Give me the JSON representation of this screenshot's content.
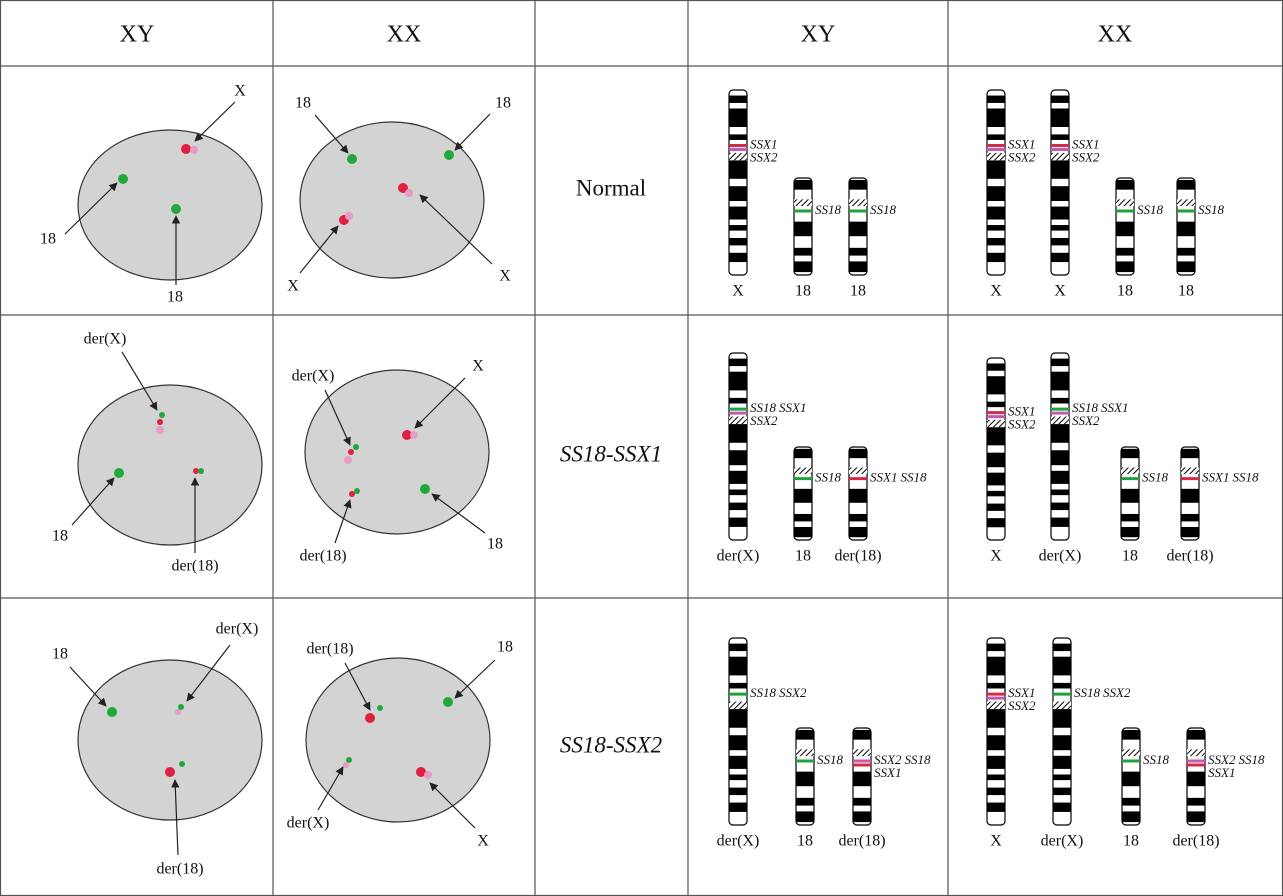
{
  "header": {
    "nuclei_columns": [
      "XY",
      "XX"
    ],
    "karyotype_columns": [
      "XY",
      "XX"
    ]
  },
  "rows": [
    {
      "label": "Normal",
      "nuclei": [
        {
          "labels": [
            "X",
            "18",
            "18"
          ]
        },
        {
          "labels": [
            "18",
            "18",
            "X",
            "X"
          ]
        }
      ],
      "karyotypes": [
        {
          "chromosomes": [
            {
              "name": "X",
              "genes": [
                [
                  {
                    "name": "SSX1",
                    "color": "#d42a48"
                  }
                ],
                [
                  {
                    "name": "SSX2",
                    "color": "#c45ab0"
                  }
                ]
              ]
            },
            {
              "name": "18",
              "genes": [
                [
                  {
                    "name": "SS18",
                    "color": "#1fa23a"
                  }
                ]
              ]
            },
            {
              "name": "18",
              "genes": [
                [
                  {
                    "name": "SS18",
                    "color": "#1fa23a"
                  }
                ]
              ]
            }
          ]
        },
        {
          "chromosomes": [
            {
              "name": "X",
              "genes": [
                [
                  {
                    "name": "SSX1",
                    "color": "#d42a48"
                  }
                ],
                [
                  {
                    "name": "SSX2",
                    "color": "#c45ab0"
                  }
                ]
              ]
            },
            {
              "name": "X",
              "genes": [
                [
                  {
                    "name": "SSX1",
                    "color": "#d42a48"
                  }
                ],
                [
                  {
                    "name": "SSX2",
                    "color": "#c45ab0"
                  }
                ]
              ]
            },
            {
              "name": "18",
              "genes": [
                [
                  {
                    "name": "SS18",
                    "color": "#1fa23a"
                  }
                ]
              ]
            },
            {
              "name": "18",
              "genes": [
                [
                  {
                    "name": "SS18",
                    "color": "#1fa23a"
                  }
                ]
              ]
            }
          ]
        }
      ]
    },
    {
      "label": "SS18-SSX1",
      "nuclei": [
        {
          "labels": [
            "der(X)",
            "18",
            "der(18)"
          ]
        },
        {
          "labels": [
            "der(X)",
            "X",
            "der(18)",
            "18"
          ]
        }
      ],
      "karyotypes": [
        {
          "chromosomes": [
            {
              "name": "der(X)",
              "genes": [
                [
                  {
                    "name": "SS18",
                    "color": "#1fa23a"
                  },
                  {
                    "name": "SSX1",
                    "color": "#d42a48"
                  }
                ],
                [
                  {
                    "name": "SSX2",
                    "color": "#c45ab0"
                  }
                ]
              ]
            },
            {
              "name": "18",
              "genes": [
                [
                  {
                    "name": "SS18",
                    "color": "#1fa23a"
                  }
                ]
              ]
            },
            {
              "name": "der(18)",
              "genes": [
                [
                  {
                    "name": "SSX1",
                    "color": "#d42a48"
                  },
                  {
                    "name": "SS18",
                    "color": "#1fa23a"
                  }
                ]
              ]
            }
          ]
        },
        {
          "chromosomes": [
            {
              "name": "X",
              "genes": [
                [
                  {
                    "name": "SSX1",
                    "color": "#d42a48"
                  }
                ],
                [
                  {
                    "name": "SSX2",
                    "color": "#c45ab0"
                  }
                ]
              ]
            },
            {
              "name": "der(X)",
              "genes": [
                [
                  {
                    "name": "SS18",
                    "color": "#1fa23a"
                  },
                  {
                    "name": "SSX1",
                    "color": "#d42a48"
                  }
                ],
                [
                  {
                    "name": "SSX2",
                    "color": "#c45ab0"
                  }
                ]
              ]
            },
            {
              "name": "18",
              "genes": [
                [
                  {
                    "name": "SS18",
                    "color": "#1fa23a"
                  }
                ]
              ]
            },
            {
              "name": "der(18)",
              "genes": [
                [
                  {
                    "name": "SSX1",
                    "color": "#d42a48"
                  },
                  {
                    "name": "SS18",
                    "color": "#1fa23a"
                  }
                ]
              ]
            }
          ]
        }
      ]
    },
    {
      "label": "SS18-SSX2",
      "nuclei": [
        {
          "labels": [
            "18",
            "der(X)",
            "der(18)"
          ]
        },
        {
          "labels": [
            "der(18)",
            "18",
            "der(X)",
            "X"
          ]
        }
      ],
      "karyotypes": [
        {
          "chromosomes": [
            {
              "name": "der(X)",
              "genes": [
                [
                  {
                    "name": "SS18",
                    "color": "#1fa23a"
                  },
                  {
                    "name": "SSX2",
                    "color": "#c45ab0"
                  }
                ]
              ]
            },
            {
              "name": "18",
              "genes": [
                [
                  {
                    "name": "SS18",
                    "color": "#1fa23a"
                  }
                ]
              ]
            },
            {
              "name": "der(18)",
              "genes": [
                [
                  {
                    "name": "SSX2",
                    "color": "#c45ab0"
                  },
                  {
                    "name": "SS18",
                    "color": "#1fa23a"
                  }
                ],
                [
                  {
                    "name": "SSX1",
                    "color": "#d42a48"
                  }
                ]
              ]
            }
          ]
        },
        {
          "chromosomes": [
            {
              "name": "X",
              "genes": [
                [
                  {
                    "name": "SSX1",
                    "color": "#d42a48"
                  }
                ],
                [
                  {
                    "name": "SSX2",
                    "color": "#c45ab0"
                  }
                ]
              ]
            },
            {
              "name": "der(X)",
              "genes": [
                [
                  {
                    "name": "SS18",
                    "color": "#1fa23a"
                  },
                  {
                    "name": "SSX2",
                    "color": "#c45ab0"
                  }
                ]
              ]
            },
            {
              "name": "18",
              "genes": [
                [
                  {
                    "name": "SS18",
                    "color": "#1fa23a"
                  }
                ]
              ]
            },
            {
              "name": "der(18)",
              "genes": [
                [
                  {
                    "name": "SSX2",
                    "color": "#c45ab0"
                  },
                  {
                    "name": "SS18",
                    "color": "#1fa23a"
                  }
                ],
                [
                  {
                    "name": "SSX1",
                    "color": "#d42a48"
                  }
                ]
              ]
            }
          ]
        }
      ]
    }
  ]
}
